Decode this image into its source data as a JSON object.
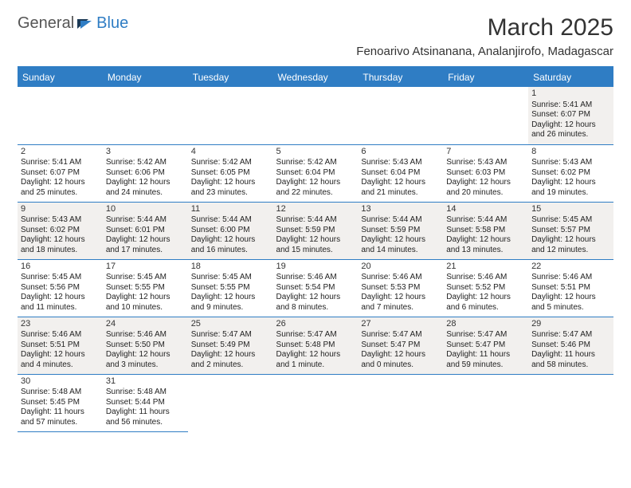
{
  "brand": {
    "name1": "General",
    "name2": "Blue"
  },
  "title": "March 2025",
  "location": "Fenoarivo Atsinanana, Analanjirofo, Madagascar",
  "colors": {
    "header_bg": "#2f7dc4",
    "header_fg": "#ffffff",
    "row_alt": "#f2f0ee",
    "border": "#2f7dc4"
  },
  "weekdays": [
    "Sunday",
    "Monday",
    "Tuesday",
    "Wednesday",
    "Thursday",
    "Friday",
    "Saturday"
  ],
  "first_weekday_index": 6,
  "days_in_month": 31,
  "label_sunrise": "Sunrise: ",
  "label_sunset": "Sunset: ",
  "label_daylight": "Daylight: ",
  "days": [
    {
      "n": 1,
      "sunrise": "5:41 AM",
      "sunset": "6:07 PM",
      "daylight": "12 hours and 26 minutes."
    },
    {
      "n": 2,
      "sunrise": "5:41 AM",
      "sunset": "6:07 PM",
      "daylight": "12 hours and 25 minutes."
    },
    {
      "n": 3,
      "sunrise": "5:42 AM",
      "sunset": "6:06 PM",
      "daylight": "12 hours and 24 minutes."
    },
    {
      "n": 4,
      "sunrise": "5:42 AM",
      "sunset": "6:05 PM",
      "daylight": "12 hours and 23 minutes."
    },
    {
      "n": 5,
      "sunrise": "5:42 AM",
      "sunset": "6:04 PM",
      "daylight": "12 hours and 22 minutes."
    },
    {
      "n": 6,
      "sunrise": "5:43 AM",
      "sunset": "6:04 PM",
      "daylight": "12 hours and 21 minutes."
    },
    {
      "n": 7,
      "sunrise": "5:43 AM",
      "sunset": "6:03 PM",
      "daylight": "12 hours and 20 minutes."
    },
    {
      "n": 8,
      "sunrise": "5:43 AM",
      "sunset": "6:02 PM",
      "daylight": "12 hours and 19 minutes."
    },
    {
      "n": 9,
      "sunrise": "5:43 AM",
      "sunset": "6:02 PM",
      "daylight": "12 hours and 18 minutes."
    },
    {
      "n": 10,
      "sunrise": "5:44 AM",
      "sunset": "6:01 PM",
      "daylight": "12 hours and 17 minutes."
    },
    {
      "n": 11,
      "sunrise": "5:44 AM",
      "sunset": "6:00 PM",
      "daylight": "12 hours and 16 minutes."
    },
    {
      "n": 12,
      "sunrise": "5:44 AM",
      "sunset": "5:59 PM",
      "daylight": "12 hours and 15 minutes."
    },
    {
      "n": 13,
      "sunrise": "5:44 AM",
      "sunset": "5:59 PM",
      "daylight": "12 hours and 14 minutes."
    },
    {
      "n": 14,
      "sunrise": "5:44 AM",
      "sunset": "5:58 PM",
      "daylight": "12 hours and 13 minutes."
    },
    {
      "n": 15,
      "sunrise": "5:45 AM",
      "sunset": "5:57 PM",
      "daylight": "12 hours and 12 minutes."
    },
    {
      "n": 16,
      "sunrise": "5:45 AM",
      "sunset": "5:56 PM",
      "daylight": "12 hours and 11 minutes."
    },
    {
      "n": 17,
      "sunrise": "5:45 AM",
      "sunset": "5:55 PM",
      "daylight": "12 hours and 10 minutes."
    },
    {
      "n": 18,
      "sunrise": "5:45 AM",
      "sunset": "5:55 PM",
      "daylight": "12 hours and 9 minutes."
    },
    {
      "n": 19,
      "sunrise": "5:46 AM",
      "sunset": "5:54 PM",
      "daylight": "12 hours and 8 minutes."
    },
    {
      "n": 20,
      "sunrise": "5:46 AM",
      "sunset": "5:53 PM",
      "daylight": "12 hours and 7 minutes."
    },
    {
      "n": 21,
      "sunrise": "5:46 AM",
      "sunset": "5:52 PM",
      "daylight": "12 hours and 6 minutes."
    },
    {
      "n": 22,
      "sunrise": "5:46 AM",
      "sunset": "5:51 PM",
      "daylight": "12 hours and 5 minutes."
    },
    {
      "n": 23,
      "sunrise": "5:46 AM",
      "sunset": "5:51 PM",
      "daylight": "12 hours and 4 minutes."
    },
    {
      "n": 24,
      "sunrise": "5:46 AM",
      "sunset": "5:50 PM",
      "daylight": "12 hours and 3 minutes."
    },
    {
      "n": 25,
      "sunrise": "5:47 AM",
      "sunset": "5:49 PM",
      "daylight": "12 hours and 2 minutes."
    },
    {
      "n": 26,
      "sunrise": "5:47 AM",
      "sunset": "5:48 PM",
      "daylight": "12 hours and 1 minute."
    },
    {
      "n": 27,
      "sunrise": "5:47 AM",
      "sunset": "5:47 PM",
      "daylight": "12 hours and 0 minutes."
    },
    {
      "n": 28,
      "sunrise": "5:47 AM",
      "sunset": "5:47 PM",
      "daylight": "11 hours and 59 minutes."
    },
    {
      "n": 29,
      "sunrise": "5:47 AM",
      "sunset": "5:46 PM",
      "daylight": "11 hours and 58 minutes."
    },
    {
      "n": 30,
      "sunrise": "5:48 AM",
      "sunset": "5:45 PM",
      "daylight": "11 hours and 57 minutes."
    },
    {
      "n": 31,
      "sunrise": "5:48 AM",
      "sunset": "5:44 PM",
      "daylight": "11 hours and 56 minutes."
    }
  ]
}
